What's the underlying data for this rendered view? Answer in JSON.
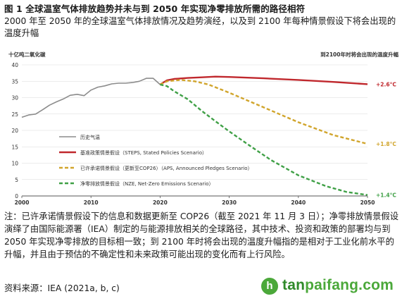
{
  "figure": {
    "title": "图 1  全球温室气体排放趋势并未与到 2050 年实现净零排放所需的路径相符",
    "subtitle": "2000 年至 2050 年的全球温室气体排放情况及趋势演经，以及到 2100 年每种情景假设下将会出现的温度升幅"
  },
  "chart_data": {
    "type": "line",
    "ylabel": "十亿吨二氧化碳",
    "right_header": "到2100年时将会出现的温度升幅",
    "xlim": [
      2000,
      2050
    ],
    "ylim": [
      0,
      40
    ],
    "xticks": [
      2000,
      2010,
      2020,
      2030,
      2040,
      2050
    ],
    "yticks": [
      0,
      5,
      10,
      15,
      20,
      25,
      30,
      35,
      40
    ],
    "grid": "horizontal",
    "legend_placement": "center-left",
    "series": [
      {
        "name": "历史气温",
        "color": "#8c8c8c",
        "dash": "solid",
        "x": [
          2000,
          2001,
          2002,
          2003,
          2004,
          2005,
          2006,
          2007,
          2008,
          2009,
          2010,
          2011,
          2012,
          2013,
          2014,
          2015,
          2016,
          2017,
          2018,
          2019,
          2020
        ],
        "y": [
          24.0,
          24.7,
          25.0,
          26.3,
          27.7,
          28.7,
          29.6,
          30.7,
          31.0,
          30.6,
          32.3,
          33.2,
          33.6,
          34.2,
          34.4,
          34.4,
          34.6,
          35.0,
          35.9,
          35.9,
          34.0
        ]
      },
      {
        "name": "基准政策情景假设（STEPS, Stated Policies Scenario）",
        "color": "#c0282d",
        "dash": "solid",
        "end_label": "+2.6°C",
        "x": [
          2020,
          2021,
          2022,
          2024,
          2026,
          2028,
          2030,
          2035,
          2040,
          2045,
          2050
        ],
        "y": [
          34.0,
          35.3,
          35.7,
          36.0,
          36.2,
          36.4,
          36.3,
          35.9,
          35.4,
          34.8,
          34.1
        ]
      },
      {
        "name": "已许承诺情景假设（更新至COP26）（APS, Announced Pledges Scenario）",
        "color": "#d1a52c",
        "dash": "dash",
        "end_label": "+1.8°C",
        "x": [
          2020,
          2021,
          2023,
          2025,
          2027,
          2030,
          2035,
          2040,
          2045,
          2050
        ],
        "y": [
          34.0,
          35.0,
          35.4,
          35.0,
          34.0,
          31.5,
          27.0,
          22.5,
          18.6,
          15.9
        ]
      },
      {
        "name": "净零排放情景假设（NZE, Net-Zero Emissions Scenario）",
        "color": "#3fa046",
        "dash": "dash",
        "end_label": "+1.4°C",
        "x": [
          2020,
          2021,
          2022,
          2024,
          2026,
          2028,
          2030,
          2033,
          2036,
          2040,
          2044,
          2047,
          2050
        ],
        "y": [
          34.0,
          33.5,
          32.0,
          29.5,
          26.0,
          22.8,
          19.7,
          15.3,
          11.0,
          6.3,
          3.0,
          1.2,
          0.3
        ]
      }
    ]
  },
  "note": "注：已许承诺情景假设下的信息和数据更新至 COP26（截至 2021 年 11 月 3 日）；净零排放情景假设演绎了由国际能源署（IEA）制定的与能源排放相关的全球路径，其中技术、投资和政策的部署均与到 2050 年实现净零排放的目标相一致；到 2100 年时将会出现的温度升幅指的是相对于工业化前水平的升幅，并且由于预估的不确定性和未来政策可能出现的变化而有上行风险。",
  "source": "资料来源：IEA (2021a, b, c)",
  "watermark": {
    "logo_letter": "h",
    "text_a": "tan",
    "text_b": "paifang.com"
  }
}
